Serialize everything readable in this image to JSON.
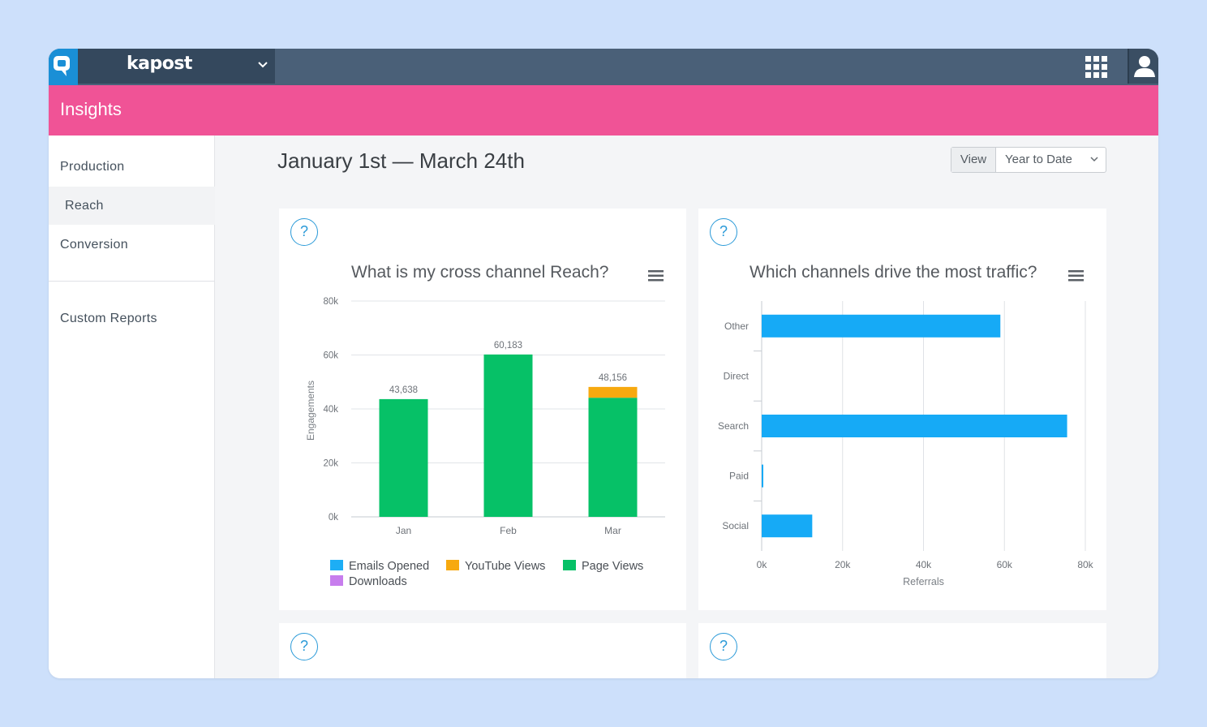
{
  "app": {
    "brand": "kapost"
  },
  "header": {
    "title": "Insights"
  },
  "sidebar": {
    "items": [
      {
        "label": "Production"
      },
      {
        "label": "Reach"
      },
      {
        "label": "Conversion"
      },
      {
        "label": "Custom Reports"
      }
    ],
    "active": "Reach"
  },
  "main": {
    "date_range": "January 1st — March 24th",
    "view": {
      "label": "View",
      "selected": "Year to Date"
    }
  },
  "help_symbol": "?",
  "colors": {
    "header_pink": "#f05396",
    "topbar": "#4a6078",
    "emails": "#1daef5",
    "youtube": "#f7a90f",
    "page_views": "#06c167",
    "downloads": "#c77ded",
    "bar_blue": "#16aaf6"
  },
  "icons": [
    "kapost-logo-icon",
    "chevron-down-icon",
    "app-grid-icon",
    "user-icon",
    "help-icon",
    "hamburger-menu-icon"
  ],
  "chart_data": [
    {
      "type": "bar",
      "stacked": true,
      "title": "What is my cross channel Reach?",
      "ylabel": "Engagements",
      "xlabel": "",
      "categories": [
        "Jan",
        "Feb",
        "Mar"
      ],
      "ylim": [
        0,
        80000
      ],
      "yticks": [
        "0k",
        "20k",
        "40k",
        "60k",
        "80k"
      ],
      "series": [
        {
          "name": "Emails Opened",
          "values": [
            0,
            0,
            0
          ]
        },
        {
          "name": "YouTube Views",
          "values": [
            0,
            0,
            4000
          ]
        },
        {
          "name": "Page Views",
          "values": [
            43638,
            60183,
            44156
          ]
        },
        {
          "name": "Downloads",
          "values": [
            0,
            0,
            0
          ]
        }
      ],
      "data_labels": [
        "43,638",
        "60,183",
        "48,156"
      ],
      "legend": "bottom"
    },
    {
      "type": "bar",
      "orientation": "horizontal",
      "title": "Which channels drive the most traffic?",
      "xlabel": "Referrals",
      "ylabel": "",
      "categories": [
        "Other",
        "Direct",
        "Search",
        "Paid",
        "Social"
      ],
      "values": [
        59000,
        0,
        75500,
        400,
        12500
      ],
      "xlim": [
        0,
        80000
      ],
      "xticks": [
        "0k",
        "20k",
        "40k",
        "60k",
        "80k"
      ],
      "grid": true
    }
  ]
}
